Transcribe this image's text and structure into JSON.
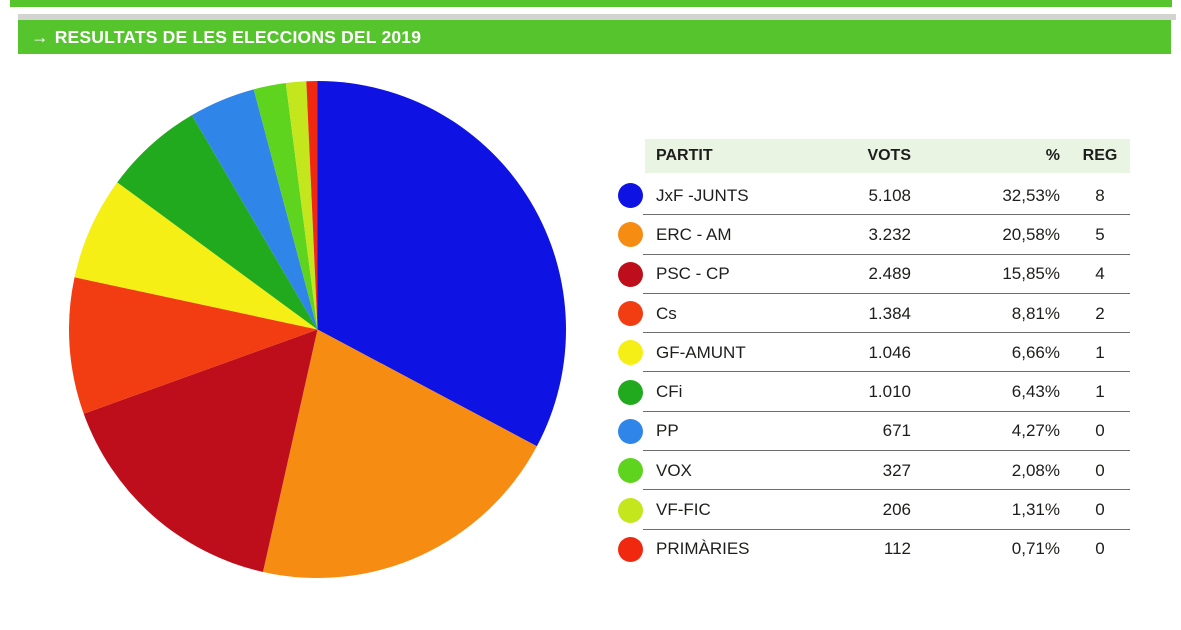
{
  "banner": {
    "arrow": "→",
    "title": "RESULTATS DE LES ELECCIONS DEL 2019"
  },
  "colors": {
    "brand_green": "#56c42d",
    "header_bg": "#e9f5e2",
    "gray_strip": "#d3d3d1",
    "separator": "#6e6e6e",
    "text": "#1d1d1b"
  },
  "table": {
    "headers": [
      "PARTIT",
      "VOTS",
      "%",
      "REG"
    ],
    "rows": [
      {
        "party": "JxF -JUNTS",
        "votes": "5.108",
        "pct": "32,53%",
        "reg": "8",
        "color": "#0e13e3"
      },
      {
        "party": "ERC - AM",
        "votes": "3.232",
        "pct": "20,58%",
        "reg": "5",
        "color": "#f78c12"
      },
      {
        "party": "PSC - CP",
        "votes": "2.489",
        "pct": "15,85%",
        "reg": "4",
        "color": "#bf0e1b"
      },
      {
        "party": "Cs",
        "votes": "1.384",
        "pct": "8,81%",
        "reg": "2",
        "color": "#f23d12"
      },
      {
        "party": "GF-AMUNT",
        "votes": "1.046",
        "pct": "6,66%",
        "reg": "1",
        "color": "#f6ef16"
      },
      {
        "party": "CFi",
        "votes": "1.010",
        "pct": "6,43%",
        "reg": "1",
        "color": "#22aa1e"
      },
      {
        "party": "PP",
        "votes": "671",
        "pct": "4,27%",
        "reg": "0",
        "color": "#2f85e8"
      },
      {
        "party": "VOX",
        "votes": "327",
        "pct": "2,08%",
        "reg": "0",
        "color": "#5fd41f"
      },
      {
        "party": "VF-FIC",
        "votes": "206",
        "pct": "1,31%",
        "reg": "0",
        "color": "#c3e61d"
      },
      {
        "party": "PRIMÀRIES",
        "votes": "112",
        "pct": "0,71%",
        "reg": "0",
        "color": "#f0280f"
      }
    ]
  },
  "chart_data": {
    "type": "pie",
    "title": "RESULTATS DE LES ELECCIONS DEL 2019",
    "labels": [
      "JxF -JUNTS",
      "ERC - AM",
      "PSC - CP",
      "Cs",
      "GF-AMUNT",
      "CFi",
      "PP",
      "VOX",
      "VF-FIC",
      "PRIMÀRIES"
    ],
    "votes": [
      5108,
      3232,
      2489,
      1384,
      1046,
      1010,
      671,
      327,
      206,
      112
    ],
    "pct": [
      32.53,
      20.58,
      15.85,
      8.81,
      6.66,
      6.43,
      4.27,
      2.08,
      1.31,
      0.71
    ],
    "seats": [
      8,
      5,
      4,
      2,
      1,
      1,
      0,
      0,
      0,
      0
    ],
    "colors": [
      "#0e13e3",
      "#f78c12",
      "#bf0e1b",
      "#f23d12",
      "#f6ef16",
      "#22aa1e",
      "#2f85e8",
      "#5fd41f",
      "#c3e61d",
      "#f0280f"
    ],
    "start_angle_deg": -90,
    "direction": "clockwise",
    "legend_position": "table-right"
  }
}
